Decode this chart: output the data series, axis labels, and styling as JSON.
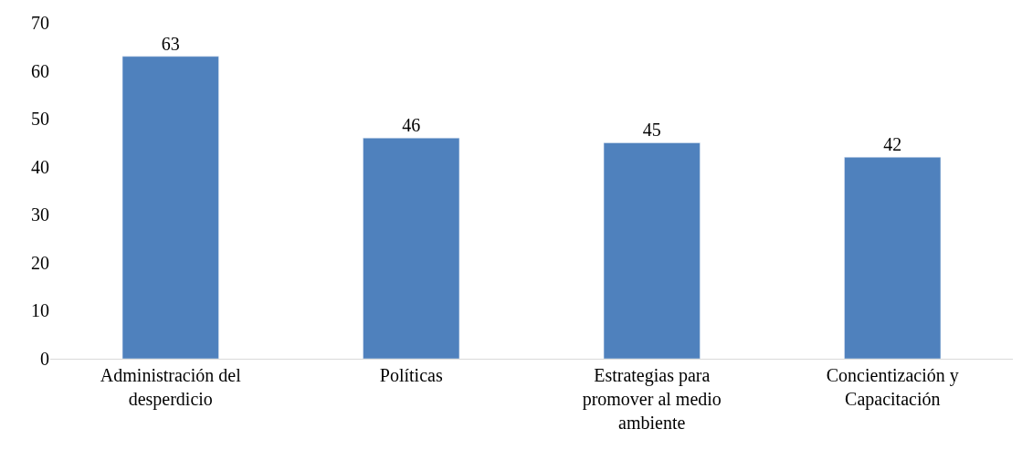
{
  "chart_data": {
    "type": "bar",
    "categories": [
      "Administración del desperdicio",
      "Políticas",
      "Estrategias para promover al medio ambiente",
      "Concientización y Capacitación"
    ],
    "values": [
      63,
      46,
      45,
      42
    ],
    "color": "#4f81bd",
    "ylim": [
      0,
      70
    ],
    "yticks": [
      0,
      10,
      20,
      30,
      40,
      50,
      60,
      70
    ],
    "data_labels": true
  }
}
